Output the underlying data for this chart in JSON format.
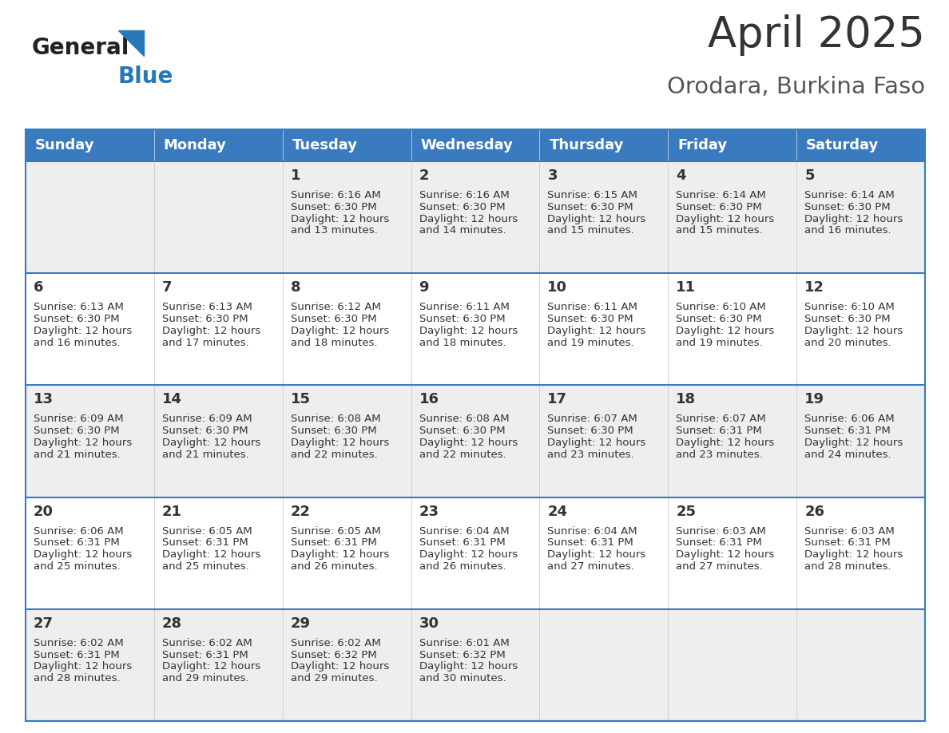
{
  "title": "April 2025",
  "subtitle": "Orodara, Burkina Faso",
  "header_color": "#3a7abf",
  "header_text_color": "#ffffff",
  "row_bg_colors": [
    "#eeeeee",
    "#ffffff",
    "#eeeeee",
    "#ffffff",
    "#eeeeee"
  ],
  "day_headers": [
    "Sunday",
    "Monday",
    "Tuesday",
    "Wednesday",
    "Thursday",
    "Friday",
    "Saturday"
  ],
  "days": [
    {
      "day": 1,
      "col": 2,
      "row": 0,
      "sunrise": "6:16 AM",
      "sunset": "6:30 PM",
      "daylight_line1": "12 hours",
      "daylight_line2": "and 13 minutes."
    },
    {
      "day": 2,
      "col": 3,
      "row": 0,
      "sunrise": "6:16 AM",
      "sunset": "6:30 PM",
      "daylight_line1": "12 hours",
      "daylight_line2": "and 14 minutes."
    },
    {
      "day": 3,
      "col": 4,
      "row": 0,
      "sunrise": "6:15 AM",
      "sunset": "6:30 PM",
      "daylight_line1": "12 hours",
      "daylight_line2": "and 15 minutes."
    },
    {
      "day": 4,
      "col": 5,
      "row": 0,
      "sunrise": "6:14 AM",
      "sunset": "6:30 PM",
      "daylight_line1": "12 hours",
      "daylight_line2": "and 15 minutes."
    },
    {
      "day": 5,
      "col": 6,
      "row": 0,
      "sunrise": "6:14 AM",
      "sunset": "6:30 PM",
      "daylight_line1": "12 hours",
      "daylight_line2": "and 16 minutes."
    },
    {
      "day": 6,
      "col": 0,
      "row": 1,
      "sunrise": "6:13 AM",
      "sunset": "6:30 PM",
      "daylight_line1": "12 hours",
      "daylight_line2": "and 16 minutes."
    },
    {
      "day": 7,
      "col": 1,
      "row": 1,
      "sunrise": "6:13 AM",
      "sunset": "6:30 PM",
      "daylight_line1": "12 hours",
      "daylight_line2": "and 17 minutes."
    },
    {
      "day": 8,
      "col": 2,
      "row": 1,
      "sunrise": "6:12 AM",
      "sunset": "6:30 PM",
      "daylight_line1": "12 hours",
      "daylight_line2": "and 18 minutes."
    },
    {
      "day": 9,
      "col": 3,
      "row": 1,
      "sunrise": "6:11 AM",
      "sunset": "6:30 PM",
      "daylight_line1": "12 hours",
      "daylight_line2": "and 18 minutes."
    },
    {
      "day": 10,
      "col": 4,
      "row": 1,
      "sunrise": "6:11 AM",
      "sunset": "6:30 PM",
      "daylight_line1": "12 hours",
      "daylight_line2": "and 19 minutes."
    },
    {
      "day": 11,
      "col": 5,
      "row": 1,
      "sunrise": "6:10 AM",
      "sunset": "6:30 PM",
      "daylight_line1": "12 hours",
      "daylight_line2": "and 19 minutes."
    },
    {
      "day": 12,
      "col": 6,
      "row": 1,
      "sunrise": "6:10 AM",
      "sunset": "6:30 PM",
      "daylight_line1": "12 hours",
      "daylight_line2": "and 20 minutes."
    },
    {
      "day": 13,
      "col": 0,
      "row": 2,
      "sunrise": "6:09 AM",
      "sunset": "6:30 PM",
      "daylight_line1": "12 hours",
      "daylight_line2": "and 21 minutes."
    },
    {
      "day": 14,
      "col": 1,
      "row": 2,
      "sunrise": "6:09 AM",
      "sunset": "6:30 PM",
      "daylight_line1": "12 hours",
      "daylight_line2": "and 21 minutes."
    },
    {
      "day": 15,
      "col": 2,
      "row": 2,
      "sunrise": "6:08 AM",
      "sunset": "6:30 PM",
      "daylight_line1": "12 hours",
      "daylight_line2": "and 22 minutes."
    },
    {
      "day": 16,
      "col": 3,
      "row": 2,
      "sunrise": "6:08 AM",
      "sunset": "6:30 PM",
      "daylight_line1": "12 hours",
      "daylight_line2": "and 22 minutes."
    },
    {
      "day": 17,
      "col": 4,
      "row": 2,
      "sunrise": "6:07 AM",
      "sunset": "6:30 PM",
      "daylight_line1": "12 hours",
      "daylight_line2": "and 23 minutes."
    },
    {
      "day": 18,
      "col": 5,
      "row": 2,
      "sunrise": "6:07 AM",
      "sunset": "6:31 PM",
      "daylight_line1": "12 hours",
      "daylight_line2": "and 23 minutes."
    },
    {
      "day": 19,
      "col": 6,
      "row": 2,
      "sunrise": "6:06 AM",
      "sunset": "6:31 PM",
      "daylight_line1": "12 hours",
      "daylight_line2": "and 24 minutes."
    },
    {
      "day": 20,
      "col": 0,
      "row": 3,
      "sunrise": "6:06 AM",
      "sunset": "6:31 PM",
      "daylight_line1": "12 hours",
      "daylight_line2": "and 25 minutes."
    },
    {
      "day": 21,
      "col": 1,
      "row": 3,
      "sunrise": "6:05 AM",
      "sunset": "6:31 PM",
      "daylight_line1": "12 hours",
      "daylight_line2": "and 25 minutes."
    },
    {
      "day": 22,
      "col": 2,
      "row": 3,
      "sunrise": "6:05 AM",
      "sunset": "6:31 PM",
      "daylight_line1": "12 hours",
      "daylight_line2": "and 26 minutes."
    },
    {
      "day": 23,
      "col": 3,
      "row": 3,
      "sunrise": "6:04 AM",
      "sunset": "6:31 PM",
      "daylight_line1": "12 hours",
      "daylight_line2": "and 26 minutes."
    },
    {
      "day": 24,
      "col": 4,
      "row": 3,
      "sunrise": "6:04 AM",
      "sunset": "6:31 PM",
      "daylight_line1": "12 hours",
      "daylight_line2": "and 27 minutes."
    },
    {
      "day": 25,
      "col": 5,
      "row": 3,
      "sunrise": "6:03 AM",
      "sunset": "6:31 PM",
      "daylight_line1": "12 hours",
      "daylight_line2": "and 27 minutes."
    },
    {
      "day": 26,
      "col": 6,
      "row": 3,
      "sunrise": "6:03 AM",
      "sunset": "6:31 PM",
      "daylight_line1": "12 hours",
      "daylight_line2": "and 28 minutes."
    },
    {
      "day": 27,
      "col": 0,
      "row": 4,
      "sunrise": "6:02 AM",
      "sunset": "6:31 PM",
      "daylight_line1": "12 hours",
      "daylight_line2": "and 28 minutes."
    },
    {
      "day": 28,
      "col": 1,
      "row": 4,
      "sunrise": "6:02 AM",
      "sunset": "6:31 PM",
      "daylight_line1": "12 hours",
      "daylight_line2": "and 29 minutes."
    },
    {
      "day": 29,
      "col": 2,
      "row": 4,
      "sunrise": "6:02 AM",
      "sunset": "6:32 PM",
      "daylight_line1": "12 hours",
      "daylight_line2": "and 29 minutes."
    },
    {
      "day": 30,
      "col": 3,
      "row": 4,
      "sunrise": "6:01 AM",
      "sunset": "6:32 PM",
      "daylight_line1": "12 hours",
      "daylight_line2": "and 30 minutes."
    }
  ],
  "title_fontsize": 38,
  "subtitle_fontsize": 21,
  "header_fontsize": 13,
  "cell_day_fontsize": 13,
  "cell_info_fontsize": 9.5,
  "border_color": "#3a7abf",
  "separator_color": "#3a7abf",
  "col_line_color": "#cccccc",
  "logo_triangle_color": "#2878b8",
  "text_color_dark": "#333333",
  "text_color_cell": "#333333",
  "text_color_subtitle": "#555555"
}
